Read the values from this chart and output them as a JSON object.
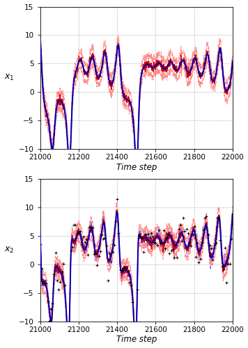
{
  "t_start": 21000,
  "t_end": 22000,
  "N": 1000,
  "ylim": [
    -10,
    15
  ],
  "yticks": [
    -10,
    -5,
    0,
    5,
    10,
    15
  ],
  "xticks": [
    21000,
    21200,
    21400,
    21600,
    21800,
    22000
  ],
  "true_color": "#0000bb",
  "est_color": "#cc0000",
  "sigma_color": "#ff8888",
  "obs_color": "#000000",
  "obs_line_color": "#6666ff",
  "true_lw": 1.4,
  "est_lw": 1.0,
  "sigma_lw": 0.7,
  "obs_lw": 0.8,
  "xlabel": "Time step",
  "ylabel1": "x_1",
  "ylabel2": "x_2",
  "grid_color": "#808080",
  "background": "#ffffff",
  "sigma_scale": 1.5,
  "obs_noise_scale": 1.2
}
